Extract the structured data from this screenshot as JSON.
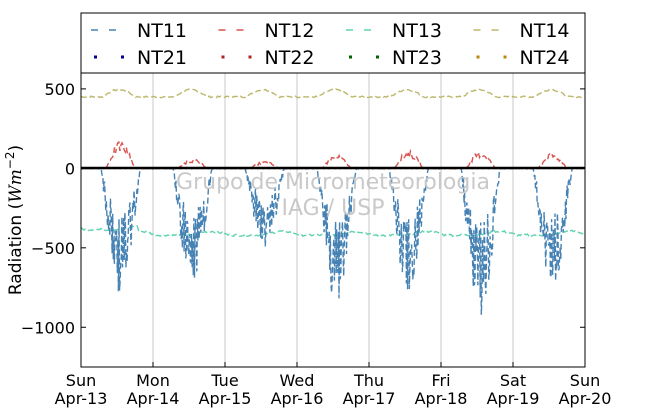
{
  "chart_data": {
    "type": "line",
    "ylabel": "Radiation ($Wm^{-2}$)",
    "ylim": [
      -1250,
      600
    ],
    "yticks": [
      500,
      0,
      -500,
      -1000
    ],
    "ytick_labels": [
      "500",
      "0",
      "−500",
      "−1000"
    ],
    "x_range_days": [
      "2014-04-13",
      "2014-04-20"
    ],
    "xtick_labels": [
      {
        "day": "Sun",
        "date": "Apr-13"
      },
      {
        "day": "Mon",
        "date": "Apr-14"
      },
      {
        "day": "Tue",
        "date": "Apr-15"
      },
      {
        "day": "Wed",
        "date": "Apr-16"
      },
      {
        "day": "Thu",
        "date": "Apr-17"
      },
      {
        "day": "Fri",
        "date": "Apr-18"
      },
      {
        "day": "Sat",
        "date": "Apr-19"
      },
      {
        "day": "Sun",
        "date": "Apr-20"
      }
    ],
    "grid": "vertical",
    "legend_position": "top",
    "legend_columns": 4,
    "watermark": [
      "Grupo de Micrometeorologia",
      "IAG / USP"
    ],
    "series": [
      {
        "name": "NT11",
        "color": "#4682b4",
        "style": "dashed",
        "peaks": [
          -800,
          -760,
          -500,
          -860,
          -790,
          -960,
          -740
        ],
        "baseline": 0
      },
      {
        "name": "NT12",
        "color": "#d9534f",
        "style": "dashed",
        "peaks": [
          170,
          60,
          45,
          85,
          110,
          110,
          95
        ],
        "baseline": 0
      },
      {
        "name": "NT13",
        "color": "#5fd3b0",
        "style": "dashed",
        "min": -440,
        "max": -360,
        "mean": -420
      },
      {
        "name": "NT14",
        "color": "#bdb76b",
        "style": "dashed",
        "min": 430,
        "max": 510,
        "mean": 460
      },
      {
        "name": "NT21",
        "color": "#00008b",
        "style": "dotted",
        "values": [
          0
        ]
      },
      {
        "name": "NT22",
        "color": "#b22222",
        "style": "dotted",
        "values": [
          0
        ]
      },
      {
        "name": "NT23",
        "color": "#006400",
        "style": "dotted",
        "values": [
          0
        ]
      },
      {
        "name": "NT24",
        "color": "#b8860b",
        "style": "dotted",
        "values": [
          0
        ]
      }
    ]
  }
}
